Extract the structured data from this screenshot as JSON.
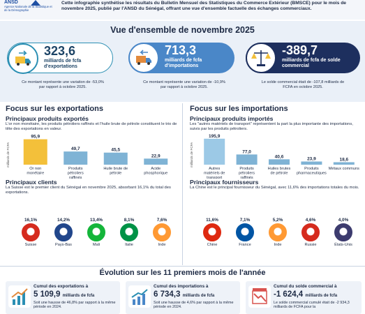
{
  "header": {
    "logo": "ANSD",
    "logo_sub": "Agence Nationale de la Statistique et de la Démographie",
    "intro": "Cette infographie synthétise les résultats du Bulletin Mensuel des Statistiques du Commerce Extérieur (BMSCE) pour le mois de novembre 2025, publié par l'ANSD du Sénégal, offrant une vue d'ensemble factuelle des échanges commerciaux."
  },
  "overview": {
    "title": "Vue d'ensemble de novembre 2025",
    "cards": [
      {
        "value": "323,6",
        "label": "milliards de fcfa d'exportations",
        "note": "Ce montant représente une variation de -53,0% par rapport à octobre 2025.",
        "icon": "export-truck-icon"
      },
      {
        "value": "713,3",
        "label": "milliards de fcfa d'importations",
        "note": "Ce montant représente une variation de -10,9% par rapport à octobre 2025.",
        "icon": "import-truck-icon"
      },
      {
        "value": "-389,7",
        "label": "milliards de fcfa de solde commercial",
        "note": "Le solde commercial était de -107,8 milliards de FCFA en octobre 2025.",
        "icon": "scale-icon"
      }
    ]
  },
  "exports": {
    "title": "Focus sur les exportations",
    "products_title": "Principaux produits exportés",
    "products_text": "L'or non monétaire, les produits pétroliers raffinés et l'huile brute de pétrole constituent le trio de tête des exportations en valeur.",
    "ylabel": "milliards de FCFA",
    "clients_title": "Principaux clients",
    "clients_text": "La Suisse est le premier client du Sénégal en novembre 2025, absorbant 16,1% du total des exportations.",
    "clients": [
      {
        "pct": "16,1%",
        "name": "Suisse",
        "color": "#d52b1e"
      },
      {
        "pct": "14,2%",
        "name": "Pays-Bas",
        "color": "#21468b"
      },
      {
        "pct": "13,4%",
        "name": "Mali",
        "color": "#14b53a"
      },
      {
        "pct": "8,1%",
        "name": "Italie",
        "color": "#009246"
      },
      {
        "pct": "7,6%",
        "name": "Inde",
        "color": "#ff9933"
      }
    ]
  },
  "imports": {
    "title": "Focus sur les importations",
    "products_title": "Principaux produits importés",
    "products_text": "Les \"autres matériels de transport\" représentent la part la plus importante des importations, suivis par les produits pétroliers.",
    "ylabel": "milliards de FCFA",
    "suppliers_title": "Principaux fournisseurs",
    "suppliers_text": "La Chine est le principal fournisseur du Sénégal, avec 11,6% des importations totales du mois.",
    "suppliers": [
      {
        "pct": "11,6%",
        "name": "Chine",
        "color": "#de2910"
      },
      {
        "pct": "7,1%",
        "name": "France",
        "color": "#0055a4"
      },
      {
        "pct": "5,2%",
        "name": "Inde",
        "color": "#ff9933"
      },
      {
        "pct": "4,6%",
        "name": "Russie",
        "color": "#d52b1e"
      },
      {
        "pct": "4,0%",
        "name": "États-Unis",
        "color": "#3c3b6e"
      }
    ]
  },
  "chart_data": [
    {
      "type": "bar",
      "categories": [
        "Or non monétaire",
        "Produits pétroliers raffinés",
        "Huile brute de pétrole",
        "Acide phosphorique"
      ],
      "values": [
        95.9,
        49.7,
        45.5,
        22.9
      ],
      "value_labels": [
        "95,9",
        "49,7",
        "45,5",
        "22,9"
      ],
      "ylabel": "milliards de FCFA",
      "ylim": [
        0,
        100
      ],
      "colors": [
        "#f3c03a",
        "#7fb3d5",
        "#7fb3d5",
        "#7fb3d5"
      ]
    },
    {
      "type": "bar",
      "categories": [
        "Autres matériels de transport",
        "Produits pétroliers raffinés",
        "Huiles brutes de pétrole",
        "Produits pharmaceutiques",
        "Métaux communs"
      ],
      "values": [
        195.9,
        77.0,
        40.6,
        23.9,
        18.6
      ],
      "value_labels": [
        "195,9",
        "77,0",
        "40,6",
        "23,9",
        "18,6"
      ],
      "ylabel": "milliards de FCFA",
      "ylim": [
        0,
        200
      ],
      "colors": [
        "#9cc9e6",
        "#7fb3d5",
        "#7fb3d5",
        "#7fb3d5",
        "#7fb3d5"
      ]
    }
  ],
  "evolution": {
    "title": "Évolution sur les 11 premiers mois de l'année",
    "cards": [
      {
        "head": "Cumul des exportations à",
        "value": "5 109,9",
        "unit": "milliards de fcfa",
        "note": "Soit une hausse de 46,8% par rapport à la même période en 2024.",
        "color": "#2b8fb3"
      },
      {
        "head": "Cumul des importations à",
        "value": "6 734,3",
        "unit": "milliards de fcfa",
        "note": "Soit une hausse de 4,6% par rapport à la même période en 2024.",
        "color": "#4a87c8"
      },
      {
        "head": "Cumul du solde commercial à",
        "value": "-1 624,4",
        "unit": "milliards de fcfa",
        "note": "Le solde commercial cumulé était de -2 934,3 milliards de FCFA pour la",
        "color": "#d9534f"
      }
    ]
  }
}
